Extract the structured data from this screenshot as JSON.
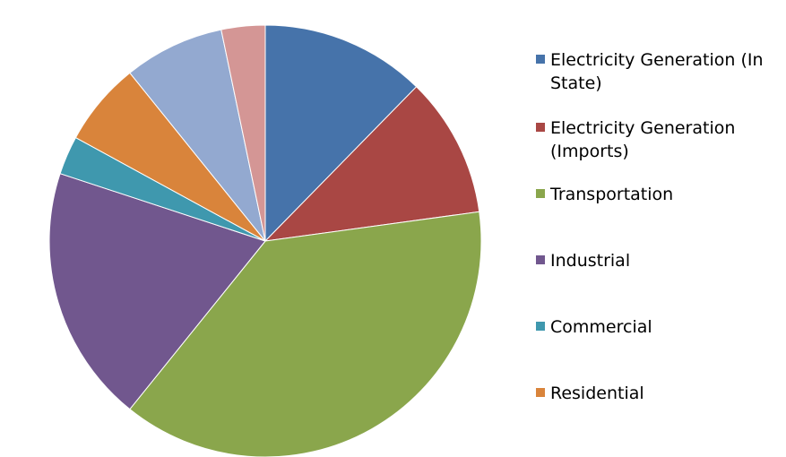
{
  "chart_data": {
    "type": "pie",
    "title": "",
    "legend_position": "right",
    "start_angle_deg": 0,
    "direction": "clockwise",
    "slices": [
      {
        "label": "Electricity Generation (In State)",
        "value": 12.8,
        "color": "#4673aa"
      },
      {
        "label": "Electricity Generation (Imports)",
        "value": 10.9,
        "color": "#a94744"
      },
      {
        "label": "Transportation",
        "value": 39.4,
        "color": "#8aa64c"
      },
      {
        "label": "Industrial",
        "value": 20.0,
        "color": "#71578e"
      },
      {
        "label": "Commercial",
        "value": 3.0,
        "color": "#3f98ae"
      },
      {
        "label": "Residential",
        "value": 6.5,
        "color": "#d9843b"
      },
      {
        "label": "",
        "value": 7.8,
        "color": "#93a9d0"
      },
      {
        "label": "",
        "value": 3.4,
        "color": "#d49695"
      }
    ]
  }
}
